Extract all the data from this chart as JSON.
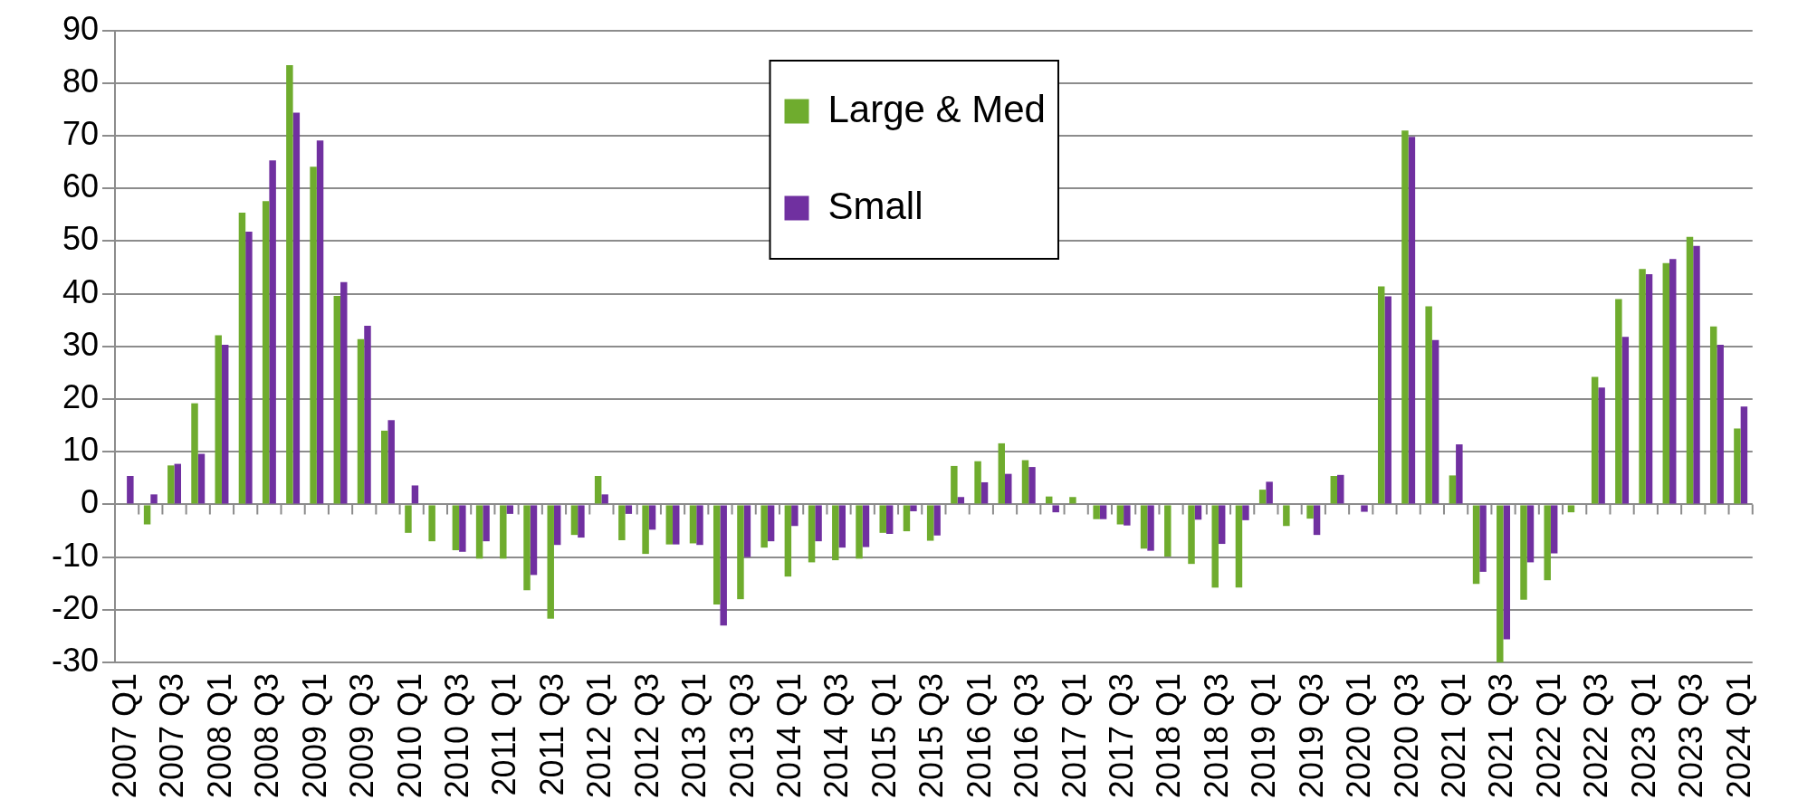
{
  "chart_data": {
    "type": "bar",
    "categories": [
      "2007 Q1",
      null,
      "2007 Q3",
      null,
      "2008 Q1",
      null,
      "2008 Q3",
      null,
      "2009 Q1",
      null,
      "2009 Q3",
      null,
      "2010 Q1",
      null,
      "2010 Q3",
      null,
      "2011 Q1",
      null,
      "2011 Q3",
      null,
      "2012 Q1",
      null,
      "2012 Q3",
      null,
      "2013 Q1",
      null,
      "2013 Q3",
      null,
      "2014 Q1",
      null,
      "2014 Q3",
      null,
      "2015 Q1",
      null,
      "2015 Q3",
      null,
      "2016 Q1",
      null,
      "2016 Q3",
      null,
      "2017 Q1",
      null,
      "2017 Q3",
      null,
      "2018 Q1",
      null,
      "2018 Q3",
      null,
      "2019 Q1",
      null,
      "2019 Q3",
      null,
      "2020 Q1",
      null,
      "2020 Q3",
      null,
      "2021 Q1",
      null,
      "2021 Q3",
      null,
      "2022 Q1",
      null,
      "2022 Q3",
      null,
      "2023 Q1",
      null,
      "2023 Q3",
      null,
      "2024 Q1"
    ],
    "series": [
      {
        "name": "Large & Med",
        "color": "#6fac2e",
        "values": [
          null,
          -3.8,
          7.4,
          19.2,
          32.1,
          55.4,
          57.6,
          83.4,
          64.1,
          39.6,
          31.4,
          14,
          -5.4,
          -7,
          -8.7,
          -10.3,
          -10.3,
          -16.3,
          -21.7,
          -5.8,
          5.4,
          -6.8,
          -9.4,
          -7.6,
          -7.4,
          -19,
          -18,
          -8.2,
          -13.7,
          -11,
          -10.6,
          -10.3,
          -5.4,
          -5.1,
          -6.9,
          7.3,
          8.2,
          11.6,
          8.4,
          1.5,
          1.4,
          -2.8,
          -3.8,
          -8.4,
          -9.9,
          -11.3,
          -15.8,
          -15.8,
          2.8,
          -4.1,
          -2.7,
          5.4,
          null,
          41.4,
          71,
          37.6,
          5.5,
          -15.1,
          -30,
          -18.1,
          -14.4,
          -1.5,
          24.2,
          39,
          44.7,
          45.8,
          50.8,
          33.8,
          14.4
        ]
      },
      {
        "name": "Small",
        "color": "#7030a0",
        "values": [
          5.4,
          1.9,
          7.7,
          9.6,
          30.3,
          51.8,
          65.3,
          74.4,
          69.1,
          42.2,
          33.9,
          16,
          3.6,
          null,
          -9,
          -7,
          -1.8,
          -13.4,
          -7.7,
          -6.3,
          1.9,
          -1.8,
          -4.8,
          -7.6,
          -7.7,
          -23,
          -10,
          -7,
          -4.1,
          -7,
          -8.2,
          -8.1,
          -5.6,
          -1.3,
          -5.9,
          1.4,
          4.2,
          5.8,
          7.1,
          -1.5,
          null,
          -2.8,
          -4,
          -8.8,
          null,
          -2.9,
          -7.5,
          -3,
          4.3,
          null,
          -5.8,
          5.6,
          -1.4,
          39.5,
          69.8,
          31.2,
          11.4,
          -12.8,
          -25.6,
          -11,
          -9.3,
          null,
          22.2,
          31.8,
          43.7,
          46.6,
          49.1,
          30.3,
          18.6
        ]
      }
    ],
    "ylim": [
      -30,
      90
    ],
    "yticks": [
      -30,
      -20,
      -10,
      0,
      10,
      20,
      30,
      40,
      50,
      60,
      70,
      80,
      90
    ],
    "grid": "y",
    "legend": "top"
  }
}
